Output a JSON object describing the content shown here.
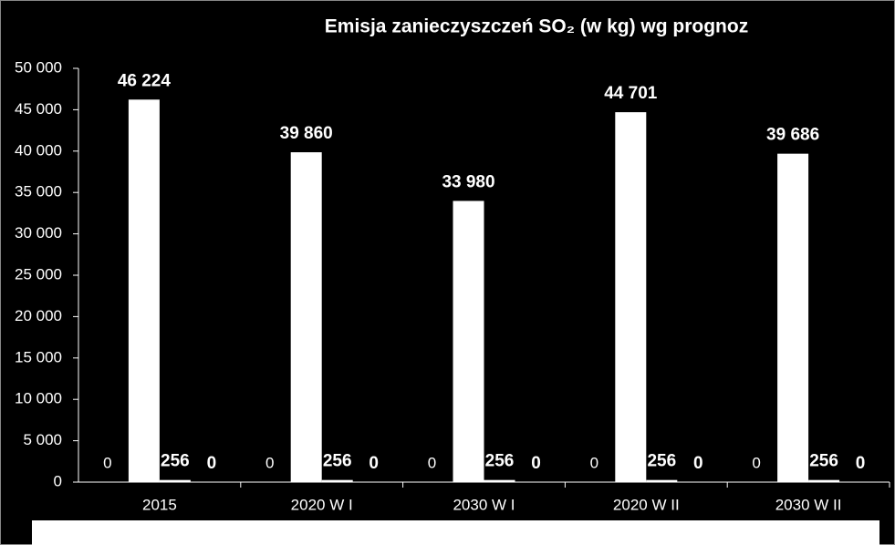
{
  "chart_data": {
    "type": "bar",
    "title": "Emisja zanieczyszczeń SO₂ (w kg) wg prognoz",
    "categories": [
      "2015",
      "2020 W I",
      "2030 W I",
      "2020 W II",
      "2030 W II"
    ],
    "series": [
      {
        "color": "#ffffff",
        "values": [
          0,
          0,
          0,
          0,
          0
        ]
      },
      {
        "color": "#ffffff",
        "values": [
          46224,
          39860,
          33980,
          44701,
          39686
        ],
        "value_labels": [
          "46 224",
          "39 860",
          "33 980",
          "44 701",
          "39 686"
        ]
      },
      {
        "color": "#ffffff",
        "values": [
          256,
          256,
          256,
          256,
          256
        ]
      },
      {
        "color": "#ffffff",
        "values": [
          0,
          0,
          0,
          0,
          0
        ]
      }
    ],
    "ylim": [
      0,
      50000
    ],
    "yticks": [
      {
        "value": 0,
        "label": "0"
      },
      {
        "value": 5000,
        "label": "5 000"
      },
      {
        "value": 10000,
        "label": "10 000"
      },
      {
        "value": 15000,
        "label": "15 000"
      },
      {
        "value": 20000,
        "label": "20 000"
      },
      {
        "value": 25000,
        "label": "25 000"
      },
      {
        "value": 30000,
        "label": "30 000"
      },
      {
        "value": 35000,
        "label": "35 000"
      },
      {
        "value": 40000,
        "label": "40 000"
      },
      {
        "value": 45000,
        "label": "45 000"
      },
      {
        "value": 50000,
        "label": "50 000"
      }
    ],
    "grid": false
  }
}
